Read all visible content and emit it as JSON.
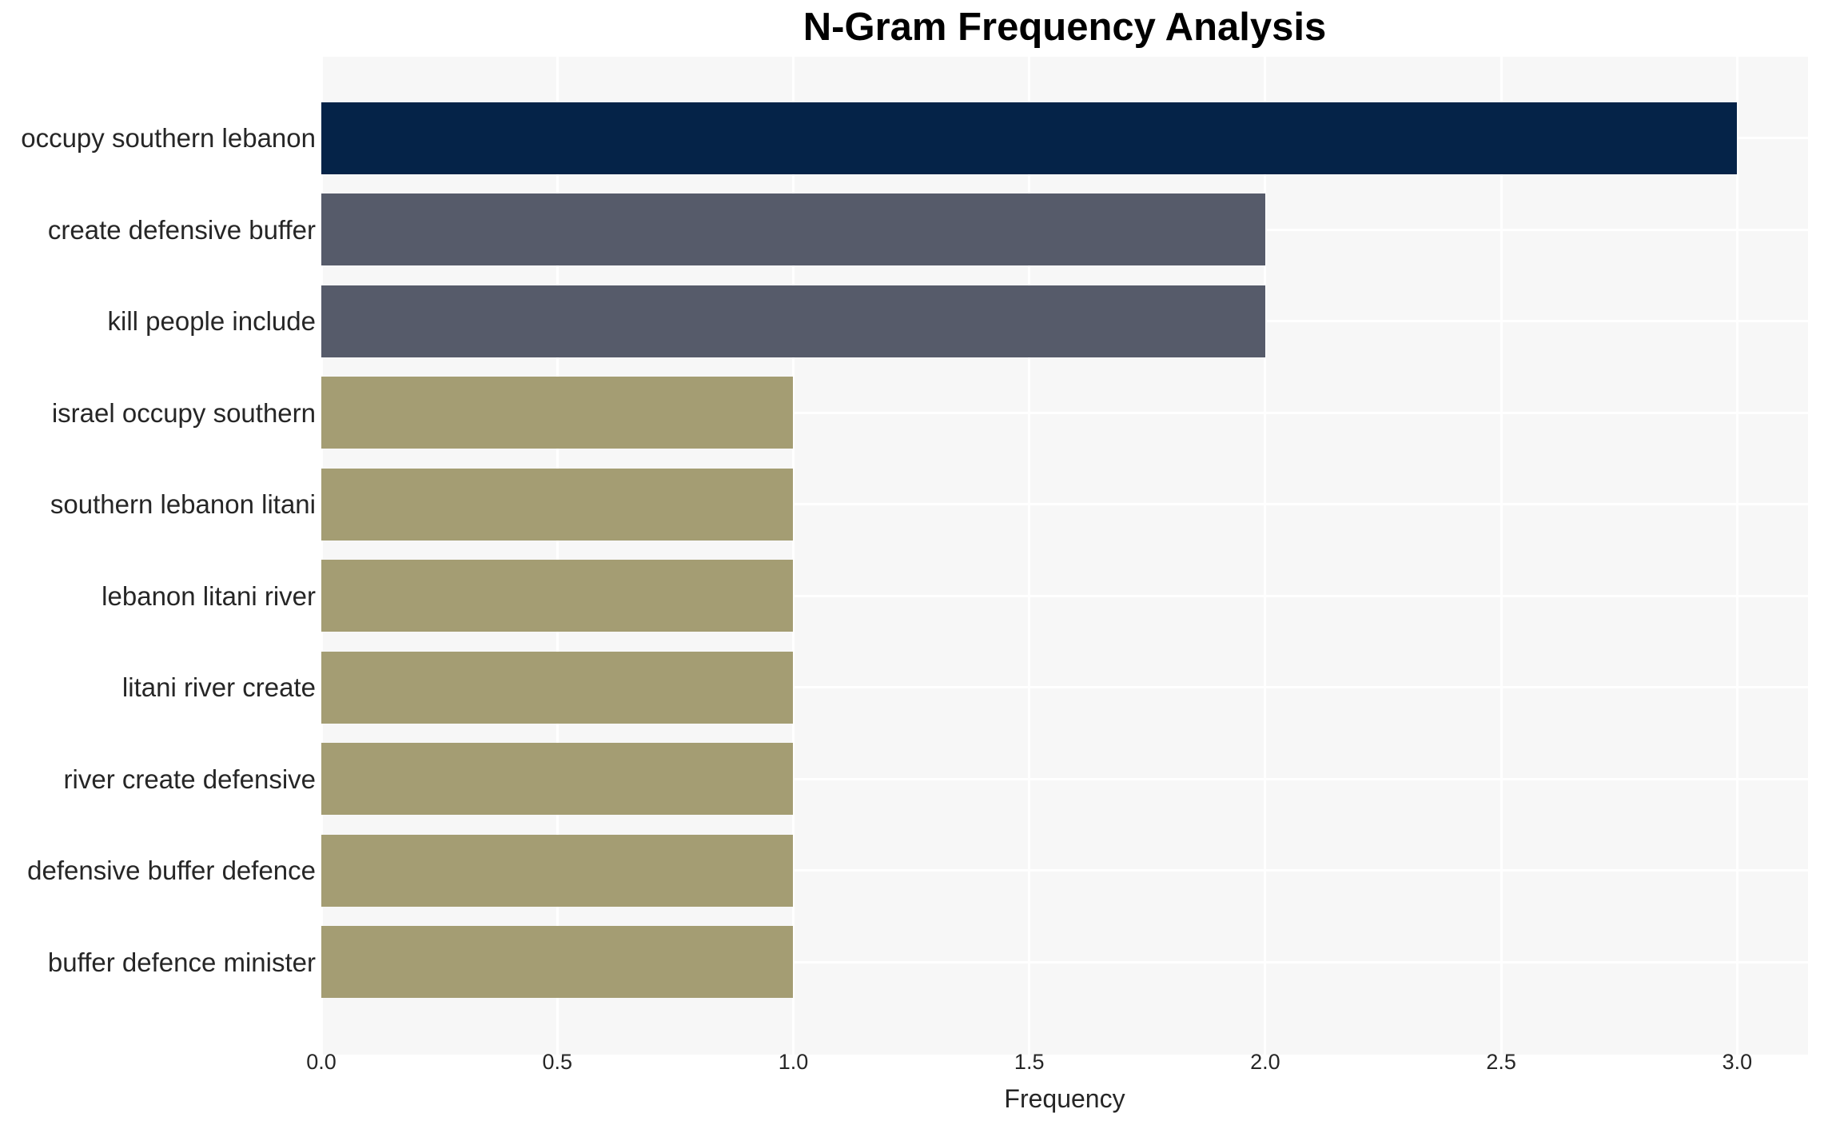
{
  "chart_data": {
    "type": "bar",
    "orientation": "horizontal",
    "title": "N-Gram Frequency Analysis",
    "xlabel": "Frequency",
    "ylabel": "",
    "categories": [
      "occupy southern lebanon",
      "create defensive buffer",
      "kill people include",
      "israel occupy southern",
      "southern lebanon litani",
      "lebanon litani river",
      "litani river create",
      "river create defensive",
      "defensive buffer defence",
      "buffer defence minister"
    ],
    "values": [
      3,
      2,
      2,
      1,
      1,
      1,
      1,
      1,
      1,
      1
    ],
    "bar_colors": [
      "#052348",
      "#565b6a",
      "#565b6a",
      "#a49d73",
      "#a49d73",
      "#a49d73",
      "#a49d73",
      "#a49d73",
      "#a49d73",
      "#a49d73"
    ],
    "xticks": [
      "0.0",
      "0.5",
      "1.0",
      "1.5",
      "2.0",
      "2.5",
      "3.0"
    ],
    "xtick_values": [
      0,
      0.5,
      1,
      1.5,
      2,
      2.5,
      3
    ],
    "xlim": [
      0,
      3.15
    ],
    "grid": true,
    "legend": false,
    "style": {
      "plot_background": "#f7f7f7",
      "figure_background": "#ffffff",
      "grid_color": "#ffffff",
      "text_color": "#262626",
      "title_color": "#000000"
    }
  }
}
